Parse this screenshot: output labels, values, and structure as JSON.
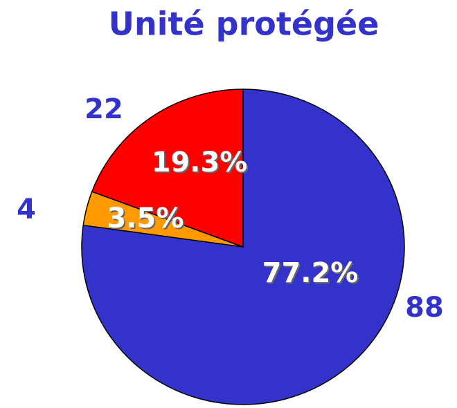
{
  "chart_data": {
    "type": "pie",
    "title": "Unité protégée",
    "categories": [
      null,
      null,
      null
    ],
    "values": [
      88,
      4,
      22
    ],
    "percentages": [
      77.2,
      3.5,
      19.3
    ],
    "percentage_labels": [
      "77.2%",
      "3.5%",
      "19.3%"
    ],
    "colors": [
      "#3333cc",
      "#ff9900",
      "#ff0000"
    ]
  }
}
